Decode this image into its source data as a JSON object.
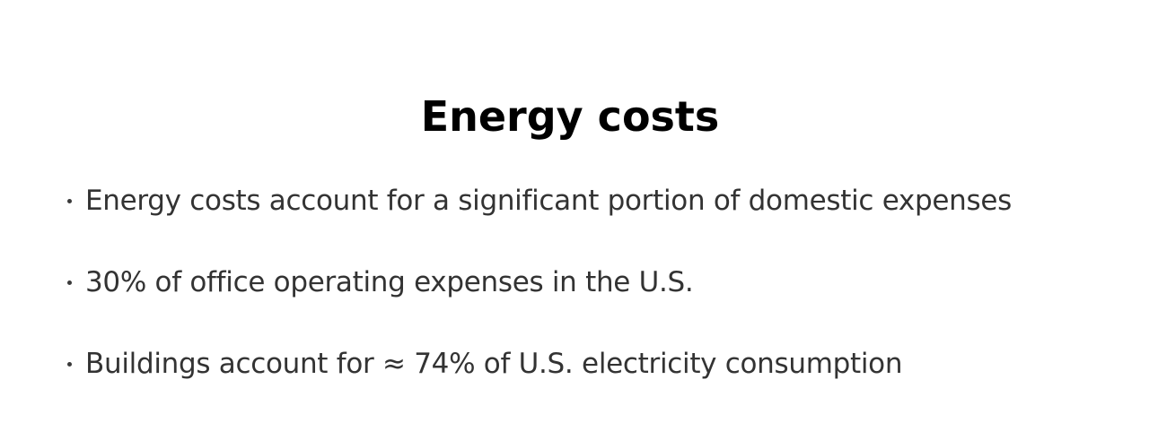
{
  "slide": {
    "title": "Energy costs",
    "bullets": [
      "Energy costs account for a significant portion of domestic expenses",
      "30% of office operating expenses in the U.S.",
      "Buildings account for ≈ 74% of U.S. electricity consumption"
    ]
  },
  "colors": {
    "background": "#ffffff",
    "title": "#000000",
    "body_text": "#333333"
  }
}
